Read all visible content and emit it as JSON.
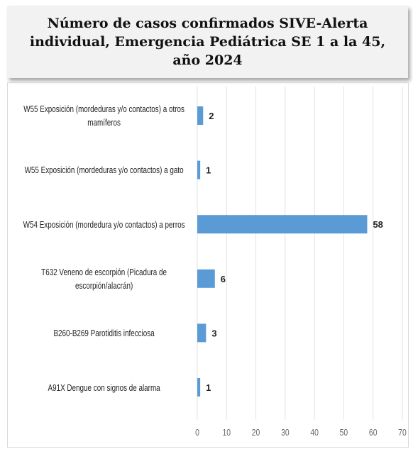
{
  "chart_data": {
    "type": "bar",
    "orientation": "horizontal",
    "title": "Número de casos confirmados SIVE-Alerta individual, Emergencia Pediátrica SE 1 a la 45, año 2024",
    "categories": [
      "W55 Exposición (mordeduras y/o contactos) a otros mamíferos",
      "W55 Exposición (mordeduras y/o contactos) a gato",
      "W54 Exposición (mordedura y/o contactos) a perros",
      "T632 Veneno de escorpión (Picadura de escorpión/alacrán)",
      "B260-B269 Parotiditis infecciosa",
      "A91X Dengue con signos de alarma"
    ],
    "values": [
      2,
      1,
      58,
      6,
      3,
      1
    ],
    "color": "#5b9bd5",
    "xlim": [
      0,
      70
    ],
    "xticks": [
      0,
      10,
      20,
      30,
      40,
      50,
      60,
      70
    ],
    "grid": true
  }
}
